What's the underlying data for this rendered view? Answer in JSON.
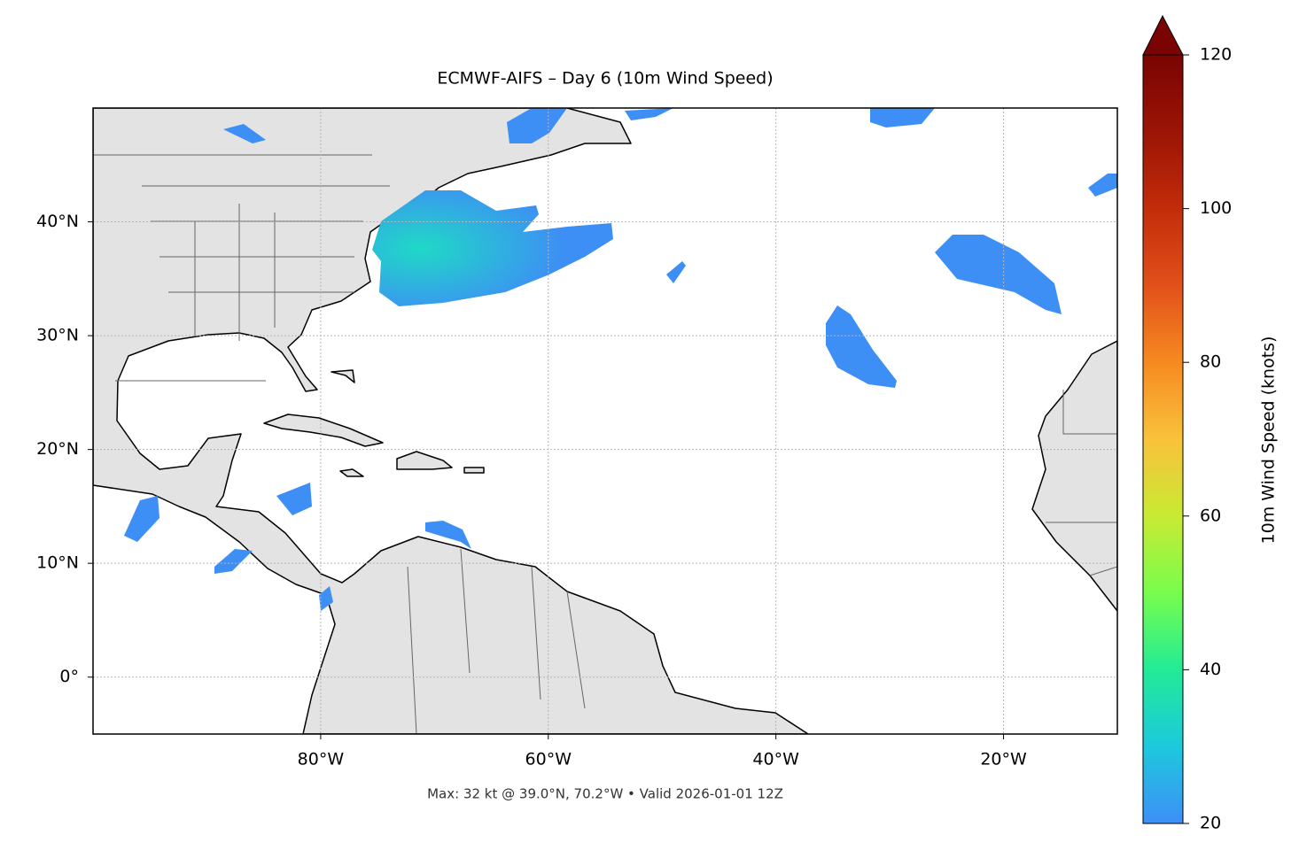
{
  "title": "ECMWF-AIFS – Day 6 (10m Wind Speed)",
  "map": {
    "lon_range": [
      -100,
      -10
    ],
    "lat_range": [
      -5,
      50
    ],
    "xticks": [
      {
        "value": -80,
        "label": "80°W"
      },
      {
        "value": -60,
        "label": "60°W"
      },
      {
        "value": -40,
        "label": "40°W"
      },
      {
        "value": -20,
        "label": "20°W"
      }
    ],
    "yticks": [
      {
        "value": 0,
        "label": "0°"
      },
      {
        "value": 10,
        "label": "10°N"
      },
      {
        "value": 20,
        "label": "20°N"
      },
      {
        "value": 30,
        "label": "30°N"
      },
      {
        "value": 40,
        "label": "40°N"
      }
    ]
  },
  "colorbar": {
    "label": "10m Wind Speed (knots)",
    "range": [
      20,
      120
    ],
    "ticks": [
      20,
      40,
      60,
      80,
      100,
      120
    ]
  },
  "footer": "Max: 32 kt @ 39.0°N, 70.2°W • Valid 2026-01-01 12Z"
}
